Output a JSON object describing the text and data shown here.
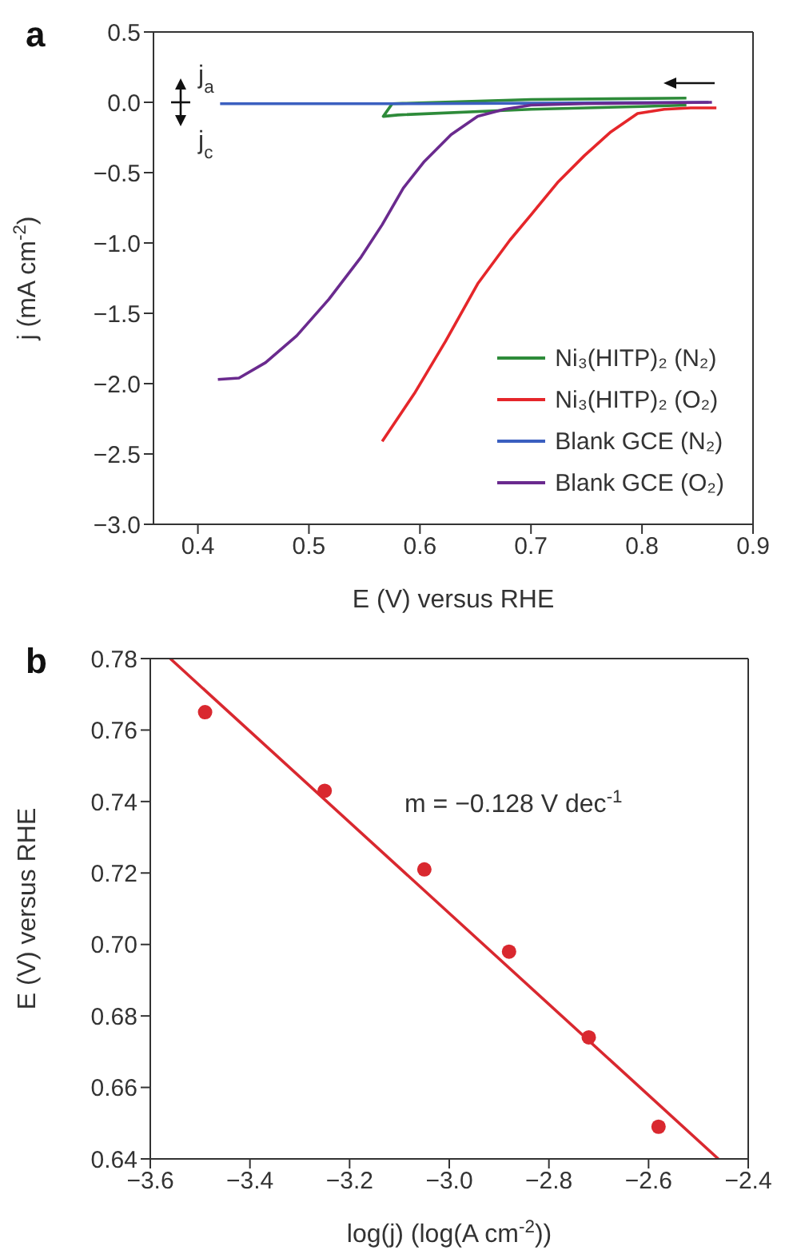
{
  "chart_data": [
    {
      "type": "line",
      "title": "a",
      "xlabel": "E (V) versus  RHE",
      "ylabel": "j (mA cm$^{-2}$)",
      "xlim": [
        0.36,
        0.9
      ],
      "xticks": [
        0.4,
        0.5,
        0.6,
        0.7,
        0.8,
        0.9
      ],
      "ylim": [
        -3.0,
        0.5
      ],
      "yticks": [
        {
          "value": 0.5,
          "label": "0.5"
        },
        {
          "value": 0,
          "label": "0.0"
        },
        {
          "value": -0.5,
          "label": "−0.5"
        },
        {
          "value": -1,
          "label": "−1.0"
        },
        {
          "value": -1.5,
          "label": "−1.5"
        },
        {
          "value": -2,
          "label": "−2.0"
        },
        {
          "value": -2.5,
          "label": "−2.5"
        },
        {
          "value": -3,
          "label": "−3.0"
        }
      ],
      "legend": "bottom right",
      "marker": "none",
      "annotations": [
        "j$_{a}$",
        "j$_{c}$"
      ],
      "series": [
        {
          "name": "Ni₃(HITP)₂ (N₂)",
          "color": "#2e8b3a",
          "x": [
            0.84,
            0.7,
            0.575,
            0.567,
            0.58,
            0.7,
            0.8,
            0.84
          ],
          "values": [
            0.03,
            0.02,
            -0.01,
            -0.1,
            -0.09,
            -0.05,
            -0.03,
            -0.02
          ]
        },
        {
          "name": "Ni₃(HITP)₂ (O₂)",
          "color": "#e5262a",
          "x": [
            0.566,
            0.595,
            0.623,
            0.652,
            0.681,
            0.7,
            0.724,
            0.748,
            0.772,
            0.796,
            0.82,
            0.844,
            0.867
          ],
          "values": [
            -2.41,
            -2.07,
            -1.7,
            -1.29,
            -0.98,
            -0.8,
            -0.57,
            -0.38,
            -0.21,
            -0.08,
            -0.05,
            -0.04,
            -0.04
          ]
        },
        {
          "name": "Blank GCE (N₂)",
          "color": "#3b5fc0",
          "x": [
            0.42,
            0.6,
            0.86
          ],
          "values": [
            -0.01,
            -0.01,
            0.0
          ]
        },
        {
          "name": "Blank GCE (O₂)",
          "color": "#6a2a8e",
          "x": [
            0.418,
            0.437,
            0.461,
            0.489,
            0.518,
            0.547,
            0.566,
            0.585,
            0.604,
            0.628,
            0.652,
            0.676,
            0.7,
            0.748,
            0.863
          ],
          "values": [
            -1.97,
            -1.96,
            -1.85,
            -1.66,
            -1.4,
            -1.1,
            -0.87,
            -0.61,
            -0.42,
            -0.23,
            -0.1,
            -0.05,
            -0.02,
            -0.01,
            0.0
          ]
        }
      ]
    },
    {
      "type": "scatter",
      "title": "b",
      "xlabel": "log(j) (log(A cm$^{-2}$))",
      "ylabel": "E (V) versus  RHE",
      "xlim": [
        -3.6,
        -2.4
      ],
      "xticks": [
        {
          "value": -3.6,
          "label": "−3.6"
        },
        {
          "value": -3.4,
          "label": "−3.4"
        },
        {
          "value": -3.2,
          "label": "−3.2"
        },
        {
          "value": -3.0,
          "label": "−3.0"
        },
        {
          "value": -2.8,
          "label": "−2.8"
        },
        {
          "value": -2.6,
          "label": "−2.6"
        },
        {
          "value": -2.4,
          "label": "−2.4"
        }
      ],
      "ylim": [
        0.64,
        0.78
      ],
      "yticks": [
        {
          "value": 0.64,
          "label": "0.64"
        },
        {
          "value": 0.66,
          "label": "0.66"
        },
        {
          "value": 0.68,
          "label": "0.68"
        },
        {
          "value": 0.7,
          "label": "0.70"
        },
        {
          "value": 0.72,
          "label": "0.72"
        },
        {
          "value": 0.74,
          "label": "0.74"
        },
        {
          "value": 0.76,
          "label": "0.76"
        },
        {
          "value": 0.78,
          "label": "0.78"
        }
      ],
      "legend": false,
      "marker": "circle",
      "annotations": [
        "m = −0.128 V dec$^{-1}$"
      ],
      "series": [
        {
          "color": "#d9282f",
          "x": [
            -3.49,
            -3.25,
            -3.05,
            -2.88,
            -2.72,
            -2.58
          ],
          "values": [
            0.765,
            0.743,
            0.721,
            0.698,
            0.674,
            0.649
          ]
        },
        {
          "type": "line",
          "marker": "none",
          "color": "#d9282f",
          "x": [
            -3.56,
            -2.46
          ],
          "values": [
            0.78,
            0.64
          ]
        }
      ]
    }
  ]
}
